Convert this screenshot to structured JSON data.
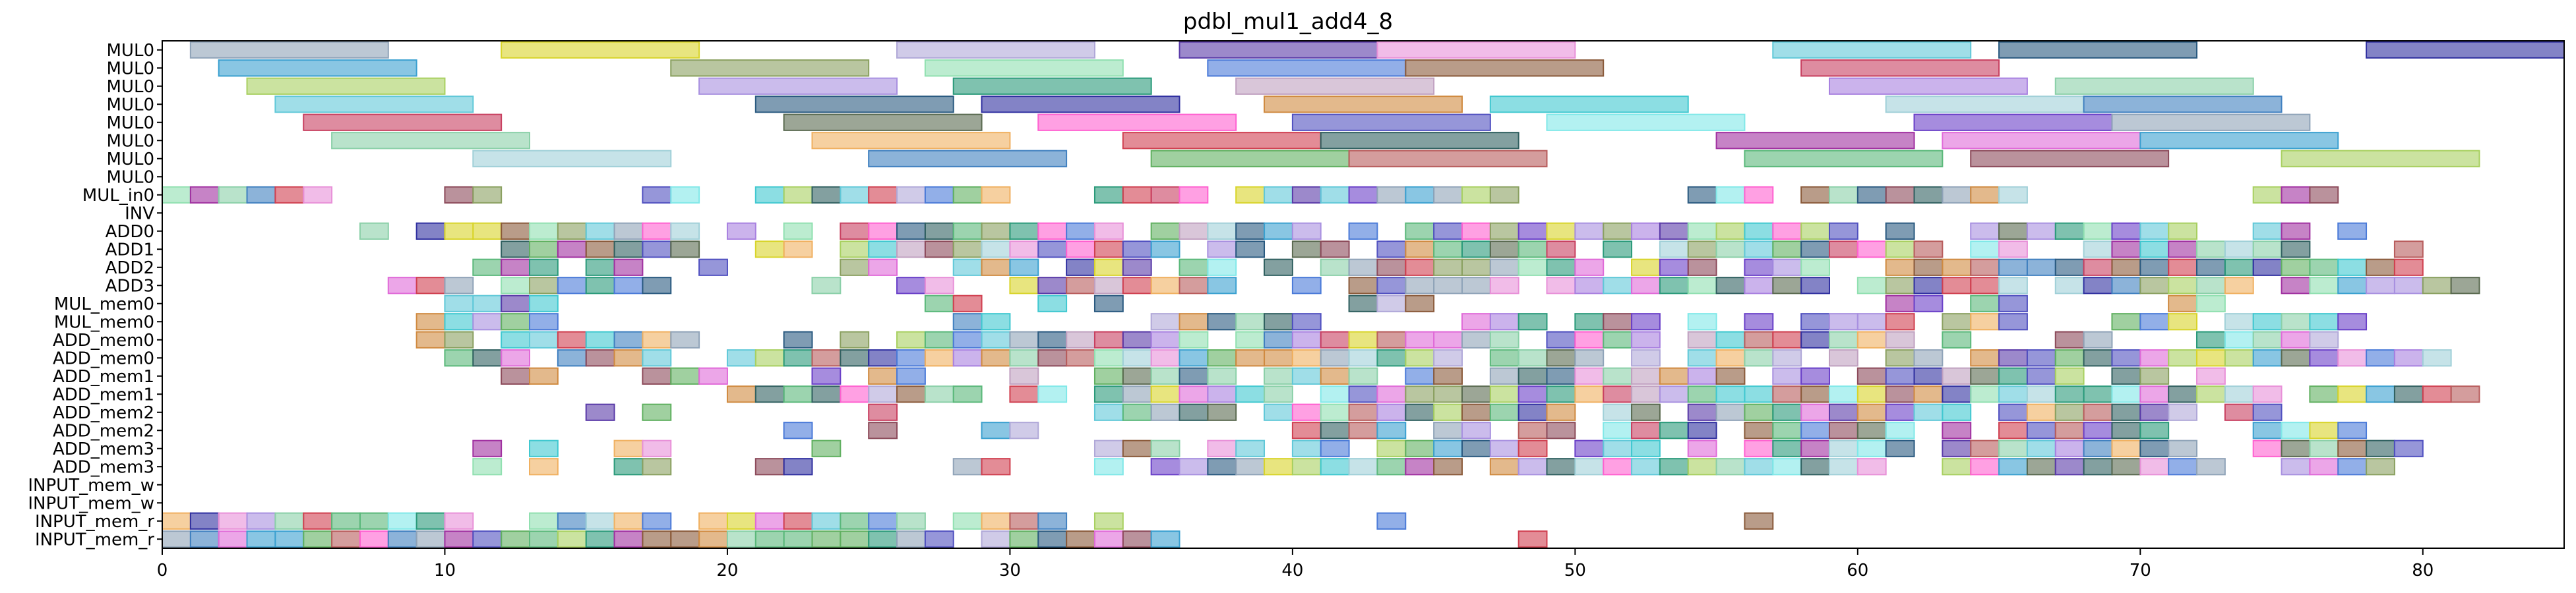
{
  "chart_data": {
    "type": "gantt",
    "title": "pdbl_mul1_add4_8",
    "xlabel": "",
    "ylabel": "",
    "xlim": [
      0,
      85
    ],
    "xticks": [
      0,
      10,
      20,
      30,
      40,
      50,
      60,
      70,
      80
    ],
    "grid": false,
    "legend": "none",
    "rows": [
      "MUL0",
      "MUL0",
      "MUL0",
      "MUL0",
      "MUL0",
      "MUL0",
      "MUL0",
      "MUL0",
      "MUL_in0",
      "INV",
      "ADD0",
      "ADD1",
      "ADD2",
      "ADD3",
      "MUL_mem0",
      "MUL_mem0",
      "ADD_mem0",
      "ADD_mem0",
      "ADD_mem1",
      "ADD_mem1",
      "ADD_mem2",
      "ADD_mem2",
      "ADD_mem3",
      "ADD_mem3",
      "INPUT_mem_w",
      "INPUT_mem_w",
      "INPUT_mem_r",
      "INPUT_mem_r"
    ],
    "palette": [
      "#8fa3b8",
      "#b85c5c",
      "#e06ad8",
      "#d8d42a",
      "#5ab87a",
      "#3aa0d0",
      "#b0a8d8",
      "#8c4a5a",
      "#8aa060",
      "#5a3aa8",
      "#a8d060",
      "#90e0b0",
      "#e890d8",
      "#a890e0",
      "#4a7ad8",
      "#60c8d8",
      "#2a9a7a",
      "#8a5a3a",
      "#2a5a80",
      "#c0a0c0",
      "#c84060",
      "#3030a0",
      "#a880e0",
      "#5a6a50",
      "#d08a40",
      "#8ad0a8",
      "#ff60d0",
      "#40c8d0",
      "#f0b060",
      "#5050c0",
      "#a0d0d8",
      "#d04050",
      "#80e8e8",
      "#4080c0",
      "#306060",
      "#6a40c8",
      "#60b060",
      "#a030a0"
    ],
    "mul0_bars": [
      [
        [
          1,
          8
        ],
        [
          12,
          19
        ],
        [
          26,
          33
        ],
        [
          36,
          43
        ],
        [
          43,
          50
        ],
        [
          57,
          64
        ],
        [
          65,
          72
        ],
        [
          78,
          85
        ]
      ],
      [
        [
          2,
          9
        ],
        [
          18,
          25
        ],
        [
          27,
          34
        ],
        [
          37,
          44
        ],
        [
          44,
          51
        ],
        [
          58,
          65
        ]
      ],
      [
        [
          3,
          10
        ],
        [
          19,
          26
        ],
        [
          28,
          35
        ],
        [
          38,
          45
        ],
        [
          59,
          66
        ],
        [
          67,
          74
        ]
      ],
      [
        [
          4,
          11
        ],
        [
          21,
          28
        ],
        [
          29,
          36
        ],
        [
          39,
          46
        ],
        [
          47,
          54
        ],
        [
          61,
          68
        ],
        [
          68,
          75
        ]
      ],
      [
        [
          5,
          12
        ],
        [
          22,
          29
        ],
        [
          31,
          38
        ],
        [
          40,
          47
        ],
        [
          49,
          56
        ],
        [
          62,
          69
        ],
        [
          69,
          76
        ]
      ],
      [
        [
          6,
          13
        ],
        [
          23,
          30
        ],
        [
          34,
          41
        ],
        [
          41,
          48
        ],
        [
          55,
          62
        ],
        [
          63,
          70
        ],
        [
          70,
          77
        ]
      ],
      [
        [
          11,
          18
        ],
        [
          25,
          32
        ],
        [
          35,
          42
        ],
        [
          42,
          49
        ],
        [
          56,
          63
        ],
        [
          64,
          71
        ],
        [
          75,
          82
        ]
      ],
      []
    ],
    "sparse_rows": {
      "INV": [],
      "INPUT_mem_w": [],
      "INPUT_mem_w_2": []
    },
    "fill_density": {
      "MUL_in0": [
        [
          0,
          6
        ],
        [
          10,
          12
        ],
        [
          17,
          19
        ],
        [
          20,
          30
        ],
        [
          33,
          48
        ],
        [
          54,
          66
        ],
        [
          74,
          77
        ]
      ],
      "ADD0": [
        [
          7,
          8
        ],
        [
          9,
          19
        ],
        [
          20,
          21
        ],
        [
          22,
          62
        ],
        [
          64,
          72
        ],
        [
          73,
          78
        ]
      ],
      "ADD1": [
        [
          12,
          19
        ],
        [
          21,
          50
        ],
        [
          51,
          63
        ],
        [
          64,
          76
        ],
        [
          79,
          80
        ]
      ],
      "ADD2": [
        [
          11,
          17
        ],
        [
          19,
          20
        ],
        [
          24,
          27
        ],
        [
          28,
          59
        ],
        [
          60,
          80
        ]
      ],
      "ADD3": [
        [
          8,
          11
        ],
        [
          12,
          18
        ],
        [
          23,
          24
        ],
        [
          26,
          28
        ],
        [
          30,
          38
        ],
        [
          39,
          82
        ]
      ],
      "MUL_mem0": [
        [
          10,
          14
        ],
        [
          27,
          29
        ],
        [
          31,
          34
        ],
        [
          42,
          45
        ],
        [
          61,
          66
        ],
        [
          71,
          73
        ]
      ],
      "MUL_mem0_2": [
        [
          9,
          14
        ],
        [
          28,
          30
        ],
        [
          35,
          41
        ],
        [
          46,
          57
        ],
        [
          58,
          66
        ],
        [
          69,
          78
        ]
      ],
      "ADD_mem0": [
        [
          9,
          19
        ],
        [
          21,
          37
        ],
        [
          38,
          64
        ],
        [
          65,
          77
        ]
      ],
      "ADD_mem0_2": [
        [
          10,
          18
        ],
        [
          20,
          81
        ]
      ],
      "ADD_mem1": [
        [
          12,
          15
        ],
        [
          17,
          20
        ],
        [
          23,
          27
        ],
        [
          30,
          59
        ],
        [
          60,
          73
        ]
      ],
      "ADD_mem1_2": [
        [
          12,
          13
        ],
        [
          20,
          82
        ]
      ],
      "ADD_mem2": [
        [
          15,
          16
        ],
        [
          17,
          18
        ],
        [
          25,
          30
        ],
        [
          33,
          64
        ],
        [
          65,
          72
        ],
        [
          73,
          75
        ]
      ],
      "ADD_mem2_2": [
        [
          22,
          23
        ],
        [
          25,
          31
        ],
        [
          38,
          64
        ],
        [
          65,
          71
        ],
        [
          74,
          78
        ]
      ],
      "ADD_mem3": [
        [
          11,
          12
        ],
        [
          13,
          14
        ],
        [
          16,
          18
        ],
        [
          23,
          24
        ],
        [
          31,
          32
        ],
        [
          33,
          72
        ],
        [
          74,
          80
        ]
      ],
      "ADD_mem3_2": [
        [
          11,
          12
        ],
        [
          13,
          14
        ],
        [
          16,
          18
        ],
        [
          21,
          23
        ],
        [
          28,
          30
        ],
        [
          33,
          73
        ],
        [
          75,
          79
        ]
      ],
      "INPUT_mem_r": [
        [
          0,
          18
        ],
        [
          19,
          34
        ],
        [
          43,
          44
        ],
        [
          56,
          57
        ]
      ],
      "INPUT_mem_r_2": [
        [
          0,
          36
        ],
        [
          48,
          49
        ],
        [
          57,
          58
        ]
      ]
    }
  }
}
